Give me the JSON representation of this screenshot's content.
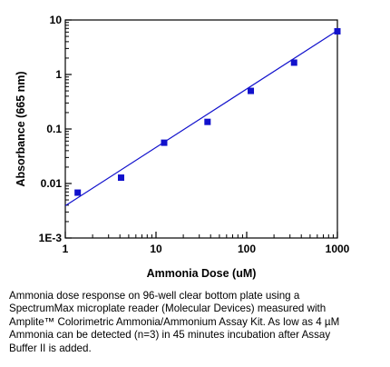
{
  "chart_data": {
    "type": "scatter",
    "xlabel": "Ammonia Dose (uM)",
    "ylabel": "Absorbance (665 nm)",
    "x_scale": "log",
    "y_scale": "log",
    "xlim": [
      1,
      1000
    ],
    "ylim": [
      0.001,
      10
    ],
    "x_ticks": [
      1,
      10,
      100,
      1000
    ],
    "x_tick_labels": [
      "1",
      "10",
      "100",
      "1000"
    ],
    "y_ticks": [
      0.001,
      0.01,
      0.1,
      1,
      10
    ],
    "y_tick_labels": [
      "1E-3",
      "0.01",
      "0.1",
      "1",
      "10"
    ],
    "grid": false,
    "colors": {
      "marker": "#1111cc",
      "fit": "#1111cc",
      "axes": "#000000"
    },
    "series": [
      {
        "points": [
          {
            "x": 1.37,
            "y": 0.0068
          },
          {
            "x": 4.12,
            "y": 0.0128
          },
          {
            "x": 12.3,
            "y": 0.056
          },
          {
            "x": 37.0,
            "y": 0.135
          },
          {
            "x": 111,
            "y": 0.5
          },
          {
            "x": 333,
            "y": 1.65
          },
          {
            "x": 1000,
            "y": 6.2
          }
        ]
      }
    ],
    "fit_line": {
      "x": [
        1,
        1000
      ],
      "y": [
        0.0039,
        6.4
      ]
    }
  },
  "caption": [
    "Ammonia dose response  on 96-well clear bottom plate using  a",
    "SpectrumMax microplate reader (Molecular Devices) measured with",
    "Amplite™ Colorimetric Ammonia/Ammonium Assay Kit.  As low as 4 µM",
    "Ammonia can be detected (n=3) in 45 minutes incubation after Assay",
    "Buffer II is added."
  ]
}
